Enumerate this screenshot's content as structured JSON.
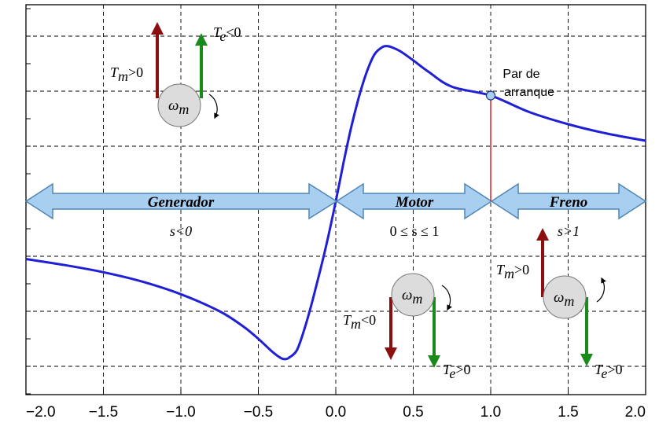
{
  "chart_data": {
    "type": "line",
    "x_ticks": [
      "-2.0",
      "-1.5",
      "-1.0",
      "-0.5",
      "0.0",
      "0.5",
      "1.0",
      "1.5",
      "2.0"
    ],
    "xlim": [
      -2.0,
      2.0
    ],
    "grid": true,
    "series": [
      {
        "color": "#1f1fd6",
        "x": [
          -2.0,
          -1.75,
          -1.5,
          -1.25,
          -1.0,
          -0.75,
          -0.6,
          -0.5,
          -0.42,
          -0.36,
          -0.33,
          -0.3,
          -0.25,
          -0.2,
          -0.15,
          -0.1,
          -0.05,
          0.0,
          0.05,
          0.1,
          0.15,
          0.2,
          0.25,
          0.3,
          0.33,
          0.36,
          0.42,
          0.5,
          0.6,
          0.75,
          1.0,
          1.25,
          1.5,
          1.75,
          2.0
        ],
        "y": [
          -1.05,
          -1.16,
          -1.29,
          -1.46,
          -1.69,
          -2.0,
          -2.27,
          -2.5,
          -2.71,
          -2.84,
          -2.87,
          -2.84,
          -2.7,
          -2.3,
          -1.8,
          -1.25,
          -0.66,
          0.0,
          0.7,
          1.35,
          1.9,
          2.35,
          2.67,
          2.8,
          2.82,
          2.8,
          2.72,
          2.56,
          2.35,
          2.08,
          1.92,
          1.62,
          1.4,
          1.23,
          1.1
        ]
      }
    ],
    "marker": {
      "x": 1.0,
      "y": 1.92,
      "label_line1": "Par de",
      "label_line2": "arranque"
    }
  },
  "regions": {
    "generator": {
      "label": "Generador",
      "condition": "s<0"
    },
    "motor": {
      "label": "Motor",
      "condition": "0 ≤ s ≤ 1"
    },
    "brake": {
      "label": "Freno",
      "condition": "s>1"
    }
  },
  "diagrams": {
    "omega": "ω",
    "omega_sub": "m",
    "T": "T",
    "sub_m": "m",
    "sub_e": "e",
    "gen_tm": ">0",
    "gen_te": "<0",
    "mot_tm": "<0",
    "mot_te": ">0",
    "brk_tm": ">0",
    "brk_te": ">0"
  },
  "colors": {
    "curve": "#1f1fd6",
    "band_fill": "#a9cff0",
    "band_stroke": "#4f86b6",
    "tm_arrow": "#8b0f0f",
    "te_arrow": "#1a8a1a",
    "marker_line": "#e02020",
    "marker_fill": "#a9cff0"
  }
}
